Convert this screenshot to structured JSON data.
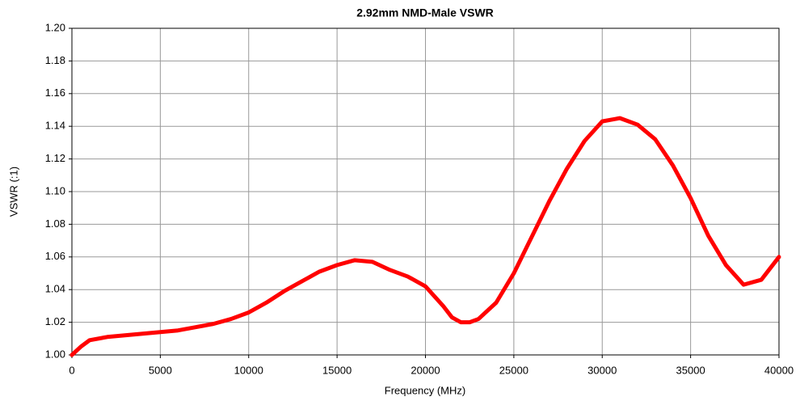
{
  "chart_data": {
    "type": "line",
    "title": "2.92mm NMD-Male VSWR",
    "xlabel": "Frequency (MHz)",
    "ylabel": "VSWR (:1)",
    "x": [
      0,
      500,
      1000,
      2000,
      3000,
      4000,
      5000,
      6000,
      7000,
      8000,
      9000,
      10000,
      11000,
      12000,
      13000,
      14000,
      15000,
      16000,
      17000,
      18000,
      19000,
      20000,
      21000,
      21500,
      22000,
      22500,
      23000,
      24000,
      25000,
      26000,
      27000,
      28000,
      29000,
      30000,
      31000,
      32000,
      33000,
      34000,
      35000,
      36000,
      37000,
      38000,
      39000,
      40000
    ],
    "series": [
      {
        "name": "VSWR",
        "color": "#ff0000",
        "values": [
          1.0,
          1.005,
          1.009,
          1.011,
          1.012,
          1.013,
          1.014,
          1.015,
          1.017,
          1.019,
          1.022,
          1.026,
          1.032,
          1.039,
          1.045,
          1.051,
          1.055,
          1.058,
          1.057,
          1.052,
          1.048,
          1.042,
          1.03,
          1.023,
          1.02,
          1.02,
          1.022,
          1.032,
          1.05,
          1.072,
          1.094,
          1.114,
          1.131,
          1.143,
          1.145,
          1.141,
          1.132,
          1.116,
          1.096,
          1.073,
          1.055,
          1.043,
          1.046,
          1.06
        ]
      }
    ],
    "xlim": [
      0,
      40000
    ],
    "xticks": [
      0,
      5000,
      10000,
      15000,
      20000,
      25000,
      30000,
      35000,
      40000
    ],
    "ylim": [
      1.0,
      1.2
    ],
    "yticks": [
      {
        "value": 1.0,
        "label": "1.00"
      },
      {
        "value": 1.02,
        "label": "1.02"
      },
      {
        "value": 1.04,
        "label": "1.04"
      },
      {
        "value": 1.06,
        "label": "1.06"
      },
      {
        "value": 1.08,
        "label": "1.08"
      },
      {
        "value": 1.1,
        "label": "1.10"
      },
      {
        "value": 1.12,
        "label": "1.12"
      },
      {
        "value": 1.14,
        "label": "1.14"
      },
      {
        "value": 1.16,
        "label": "1.16"
      },
      {
        "value": 1.18,
        "label": "1.18"
      },
      {
        "value": 1.2,
        "label": "1.20"
      }
    ],
    "grid": true
  }
}
